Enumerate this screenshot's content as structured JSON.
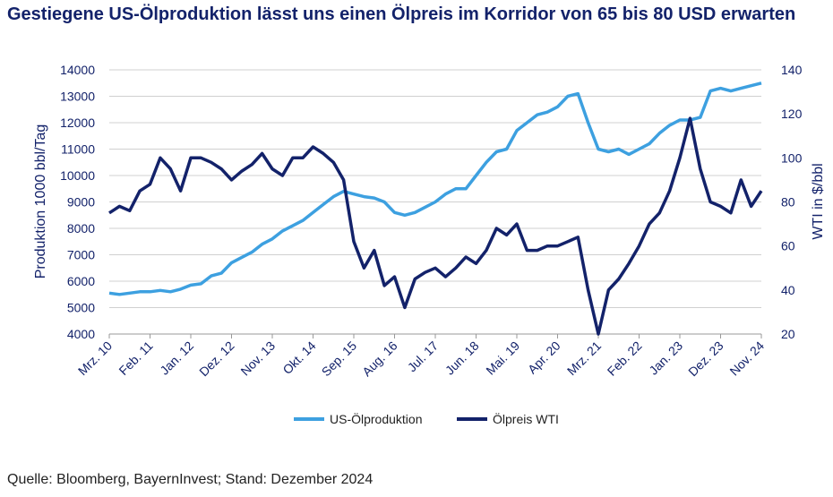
{
  "chart_data": {
    "type": "line",
    "title": "Gestiegene US-Ölproduktion lässt uns einen Ölpreis im Korridor von 65 bis 80 USD erwarten",
    "y_label": "Produktion 1000 bbl/Tag",
    "y2_label": "WTI in $/bbl",
    "source": "Quelle: Bloomberg, BayernInvest; Stand: Dezember 2024",
    "categories": [
      "Mrz. 10",
      null,
      null,
      null,
      "Feb. 11",
      null,
      null,
      null,
      "Jan. 12",
      null,
      null,
      null,
      "Dez. 12",
      null,
      null,
      null,
      "Nov. 13",
      null,
      null,
      null,
      "Okt. 14",
      null,
      null,
      null,
      "Sep. 15",
      null,
      null,
      null,
      "Aug. 16",
      null,
      null,
      null,
      "Jul. 17",
      null,
      null,
      null,
      "Jun. 18",
      null,
      null,
      null,
      "Mai. 19",
      null,
      null,
      null,
      "Apr. 20",
      null,
      null,
      null,
      "Mrz. 21",
      null,
      null,
      null,
      "Feb. 22",
      null,
      null,
      null,
      "Jan. 23",
      null,
      null,
      null,
      "Dez. 23",
      null,
      null,
      null,
      "Nov. 24"
    ],
    "series": [
      {
        "name": "US-Ölproduktion",
        "color": "#3da0e0",
        "values": [
          5550,
          5500,
          5550,
          5600,
          5600,
          5650,
          5600,
          5700,
          5850,
          5900,
          6200,
          6300,
          6700,
          6900,
          7100,
          7400,
          7600,
          7900,
          8100,
          8300,
          8600,
          8900,
          9200,
          9400,
          9300,
          9200,
          9150,
          9000,
          8600,
          8500,
          8600,
          8800,
          9000,
          9300,
          9500,
          9500,
          10000,
          10500,
          10900,
          11000,
          11700,
          12000,
          12300,
          12400,
          12600,
          13000,
          13100,
          12000,
          11000,
          10900,
          11000,
          10800,
          11000,
          11200,
          11600,
          11900,
          12100,
          12100,
          12200,
          13200,
          13300,
          13200,
          13300,
          13400,
          13500
        ]
      },
      {
        "name": "Ölpreis WTI",
        "color": "#13226a",
        "axis": "y2",
        "values": [
          75,
          78,
          76,
          85,
          88,
          100,
          95,
          85,
          100,
          100,
          98,
          95,
          90,
          94,
          97,
          102,
          95,
          92,
          100,
          100,
          105,
          102,
          98,
          90,
          62,
          50,
          58,
          42,
          46,
          32,
          45,
          48,
          50,
          46,
          50,
          55,
          52,
          58,
          68,
          65,
          70,
          58,
          58,
          60,
          60,
          62,
          64,
          40,
          20,
          40,
          45,
          52,
          60,
          70,
          75,
          85,
          100,
          118,
          95,
          80,
          78,
          75,
          90,
          78,
          85
        ]
      }
    ],
    "ylim": [
      4000,
      14000
    ],
    "yticks": [
      4000,
      5000,
      6000,
      7000,
      8000,
      9000,
      10000,
      11000,
      12000,
      13000,
      14000
    ],
    "y2lim": [
      20,
      140
    ],
    "y2ticks": [
      20,
      40,
      60,
      80,
      100,
      120,
      140
    ],
    "grid": true
  }
}
